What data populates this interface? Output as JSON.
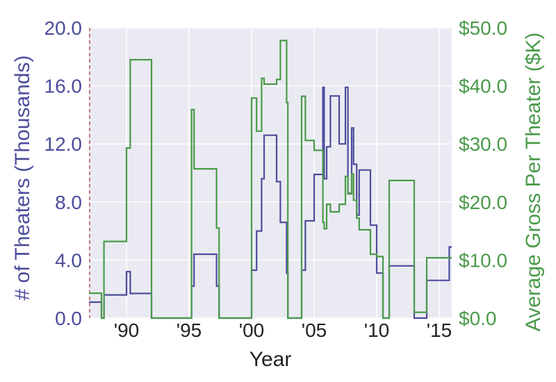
{
  "chart_data": {
    "type": "line",
    "step": true,
    "xlabel": "Year",
    "ylabel_left": "# of Theaters (Thousands)",
    "ylabel_right": "Average Gross Per Theater ($K)",
    "xlim": [
      1987.0,
      2016.0
    ],
    "ylim_left": [
      0,
      20
    ],
    "ylim_right": [
      0,
      50
    ],
    "grid": true,
    "x_ticks": [
      {
        "value": 1990,
        "label": "'90"
      },
      {
        "value": 1995,
        "label": "'95"
      },
      {
        "value": 2000,
        "label": "'00"
      },
      {
        "value": 2005,
        "label": "'05"
      },
      {
        "value": 2010,
        "label": "'10"
      },
      {
        "value": 2015,
        "label": "'15"
      }
    ],
    "left_ticks": [
      {
        "value": 0,
        "label": "0.0"
      },
      {
        "value": 4,
        "label": "4.0"
      },
      {
        "value": 8,
        "label": "8.0"
      },
      {
        "value": 12,
        "label": "12.0"
      },
      {
        "value": 16,
        "label": "16.0"
      },
      {
        "value": 20,
        "label": "20.0"
      }
    ],
    "right_ticks": [
      {
        "value": 0,
        "label": "$0.0"
      },
      {
        "value": 10,
        "label": "$10.0"
      },
      {
        "value": 20,
        "label": "$20.0"
      },
      {
        "value": 30,
        "label": "$30.0"
      },
      {
        "value": 40,
        "label": "$40.0"
      },
      {
        "value": 50,
        "label": "$50.0"
      }
    ],
    "marker_line_x": 1987.0,
    "colors": {
      "theaters": "#4c4c9d",
      "gross": "#4a9a4a",
      "marker_line": "#c44e52",
      "plot_bg": "#eaeaf2",
      "grid": "#ffffff",
      "tick_text": "#222222"
    },
    "series": [
      {
        "axis": "left",
        "points": [
          [
            1987.0,
            1.1
          ],
          [
            1988.0,
            1.1
          ],
          [
            1988.0,
            0.0
          ],
          [
            1988.2,
            0.0
          ],
          [
            1988.2,
            1.6
          ],
          [
            1990.0,
            1.6
          ],
          [
            1990.0,
            3.2
          ],
          [
            1990.3,
            3.2
          ],
          [
            1990.3,
            1.7
          ],
          [
            1992.0,
            1.7
          ],
          [
            1992.0,
            0.0
          ],
          [
            1995.2,
            0.0
          ],
          [
            1995.2,
            2.2
          ],
          [
            1995.4,
            2.2
          ],
          [
            1995.4,
            4.4
          ],
          [
            1997.2,
            4.4
          ],
          [
            1997.2,
            2.2
          ],
          [
            1997.4,
            2.2
          ],
          [
            1997.4,
            0.0
          ],
          [
            2000.0,
            0.0
          ],
          [
            2000.0,
            3.3
          ],
          [
            2000.4,
            3.3
          ],
          [
            2000.4,
            6.0
          ],
          [
            2000.8,
            6.0
          ],
          [
            2000.8,
            9.6
          ],
          [
            2001.0,
            9.6
          ],
          [
            2001.0,
            12.6
          ],
          [
            2002.0,
            12.6
          ],
          [
            2002.0,
            9.4
          ],
          [
            2002.3,
            9.4
          ],
          [
            2002.3,
            6.6
          ],
          [
            2002.8,
            6.6
          ],
          [
            2002.8,
            3.1
          ],
          [
            2002.9,
            3.1
          ],
          [
            2002.9,
            0.0
          ],
          [
            2004.0,
            0.0
          ],
          [
            2004.0,
            3.3
          ],
          [
            2004.3,
            3.3
          ],
          [
            2004.3,
            6.7
          ],
          [
            2005.0,
            6.7
          ],
          [
            2005.0,
            9.9
          ],
          [
            2005.7,
            9.9
          ],
          [
            2005.7,
            15.9
          ],
          [
            2005.8,
            15.9
          ],
          [
            2005.8,
            9.6
          ],
          [
            2006.0,
            9.6
          ],
          [
            2006.0,
            11.8
          ],
          [
            2006.3,
            11.8
          ],
          [
            2006.3,
            15.3
          ],
          [
            2007.0,
            15.3
          ],
          [
            2007.0,
            12.0
          ],
          [
            2007.5,
            12.0
          ],
          [
            2007.5,
            15.9
          ],
          [
            2007.7,
            15.9
          ],
          [
            2007.7,
            8.6
          ],
          [
            2008.0,
            8.6
          ],
          [
            2008.0,
            13.1
          ],
          [
            2008.15,
            13.1
          ],
          [
            2008.15,
            10.6
          ],
          [
            2008.4,
            10.6
          ],
          [
            2008.4,
            7.1
          ],
          [
            2008.6,
            7.1
          ],
          [
            2008.6,
            10.2
          ],
          [
            2009.5,
            10.2
          ],
          [
            2009.5,
            6.4
          ],
          [
            2010.0,
            6.4
          ],
          [
            2010.0,
            3.1
          ],
          [
            2010.5,
            3.1
          ],
          [
            2010.5,
            0.0
          ],
          [
            2011.0,
            0.0
          ],
          [
            2011.0,
            3.6
          ],
          [
            2013.0,
            3.6
          ],
          [
            2013.0,
            0.0
          ],
          [
            2014.0,
            0.0
          ],
          [
            2014.0,
            2.6
          ],
          [
            2015.8,
            2.6
          ],
          [
            2015.8,
            4.9
          ],
          [
            2016.0,
            4.9
          ]
        ]
      },
      {
        "axis": "right",
        "points": [
          [
            1987.0,
            4.3
          ],
          [
            1988.0,
            4.3
          ],
          [
            1988.0,
            0.0
          ],
          [
            1988.2,
            0.0
          ],
          [
            1988.2,
            13.2
          ],
          [
            1990.0,
            13.2
          ],
          [
            1990.0,
            29.3
          ],
          [
            1990.3,
            29.3
          ],
          [
            1990.3,
            44.5
          ],
          [
            1992.0,
            44.5
          ],
          [
            1992.0,
            0.0
          ],
          [
            1995.2,
            0.0
          ],
          [
            1995.2,
            35.9
          ],
          [
            1995.4,
            35.9
          ],
          [
            1995.4,
            25.7
          ],
          [
            1997.2,
            25.7
          ],
          [
            1997.2,
            15.5
          ],
          [
            1997.4,
            15.5
          ],
          [
            1997.4,
            0.0
          ],
          [
            2000.0,
            0.0
          ],
          [
            2000.0,
            37.9
          ],
          [
            2000.4,
            37.9
          ],
          [
            2000.4,
            32.2
          ],
          [
            2000.8,
            32.2
          ],
          [
            2000.8,
            41.3
          ],
          [
            2001.0,
            41.3
          ],
          [
            2001.0,
            40.3
          ],
          [
            2002.0,
            40.3
          ],
          [
            2002.0,
            41.1
          ],
          [
            2002.3,
            41.1
          ],
          [
            2002.3,
            47.8
          ],
          [
            2002.8,
            47.8
          ],
          [
            2002.8,
            37.1
          ],
          [
            2002.9,
            37.1
          ],
          [
            2002.9,
            0.0
          ],
          [
            2004.0,
            0.0
          ],
          [
            2004.0,
            38.2
          ],
          [
            2004.3,
            38.2
          ],
          [
            2004.3,
            30.6
          ],
          [
            2005.0,
            30.6
          ],
          [
            2005.0,
            28.9
          ],
          [
            2005.7,
            28.9
          ],
          [
            2005.7,
            16.5
          ],
          [
            2005.8,
            16.5
          ],
          [
            2005.8,
            15.4
          ],
          [
            2006.0,
            15.4
          ],
          [
            2006.0,
            19.6
          ],
          [
            2006.3,
            19.6
          ],
          [
            2006.3,
            18.3
          ],
          [
            2007.0,
            18.3
          ],
          [
            2007.0,
            19.6
          ],
          [
            2007.5,
            19.6
          ],
          [
            2007.5,
            24.4
          ],
          [
            2007.7,
            24.4
          ],
          [
            2007.7,
            21.4
          ],
          [
            2008.0,
            21.4
          ],
          [
            2008.0,
            24.8
          ],
          [
            2008.15,
            24.8
          ],
          [
            2008.15,
            20.3
          ],
          [
            2008.4,
            20.3
          ],
          [
            2008.4,
            17.2
          ],
          [
            2008.6,
            17.2
          ],
          [
            2008.6,
            15.2
          ],
          [
            2009.5,
            15.2
          ],
          [
            2009.5,
            11.0
          ],
          [
            2010.0,
            11.0
          ],
          [
            2010.0,
            10.6
          ],
          [
            2010.5,
            10.6
          ],
          [
            2010.5,
            0.0
          ],
          [
            2011.0,
            0.0
          ],
          [
            2011.0,
            23.7
          ],
          [
            2013.0,
            23.7
          ],
          [
            2013.0,
            1.0
          ],
          [
            2014.0,
            1.0
          ],
          [
            2014.0,
            10.4
          ],
          [
            2015.8,
            10.4
          ],
          [
            2015.8,
            10.4
          ],
          [
            2016.0,
            10.4
          ]
        ]
      }
    ]
  }
}
